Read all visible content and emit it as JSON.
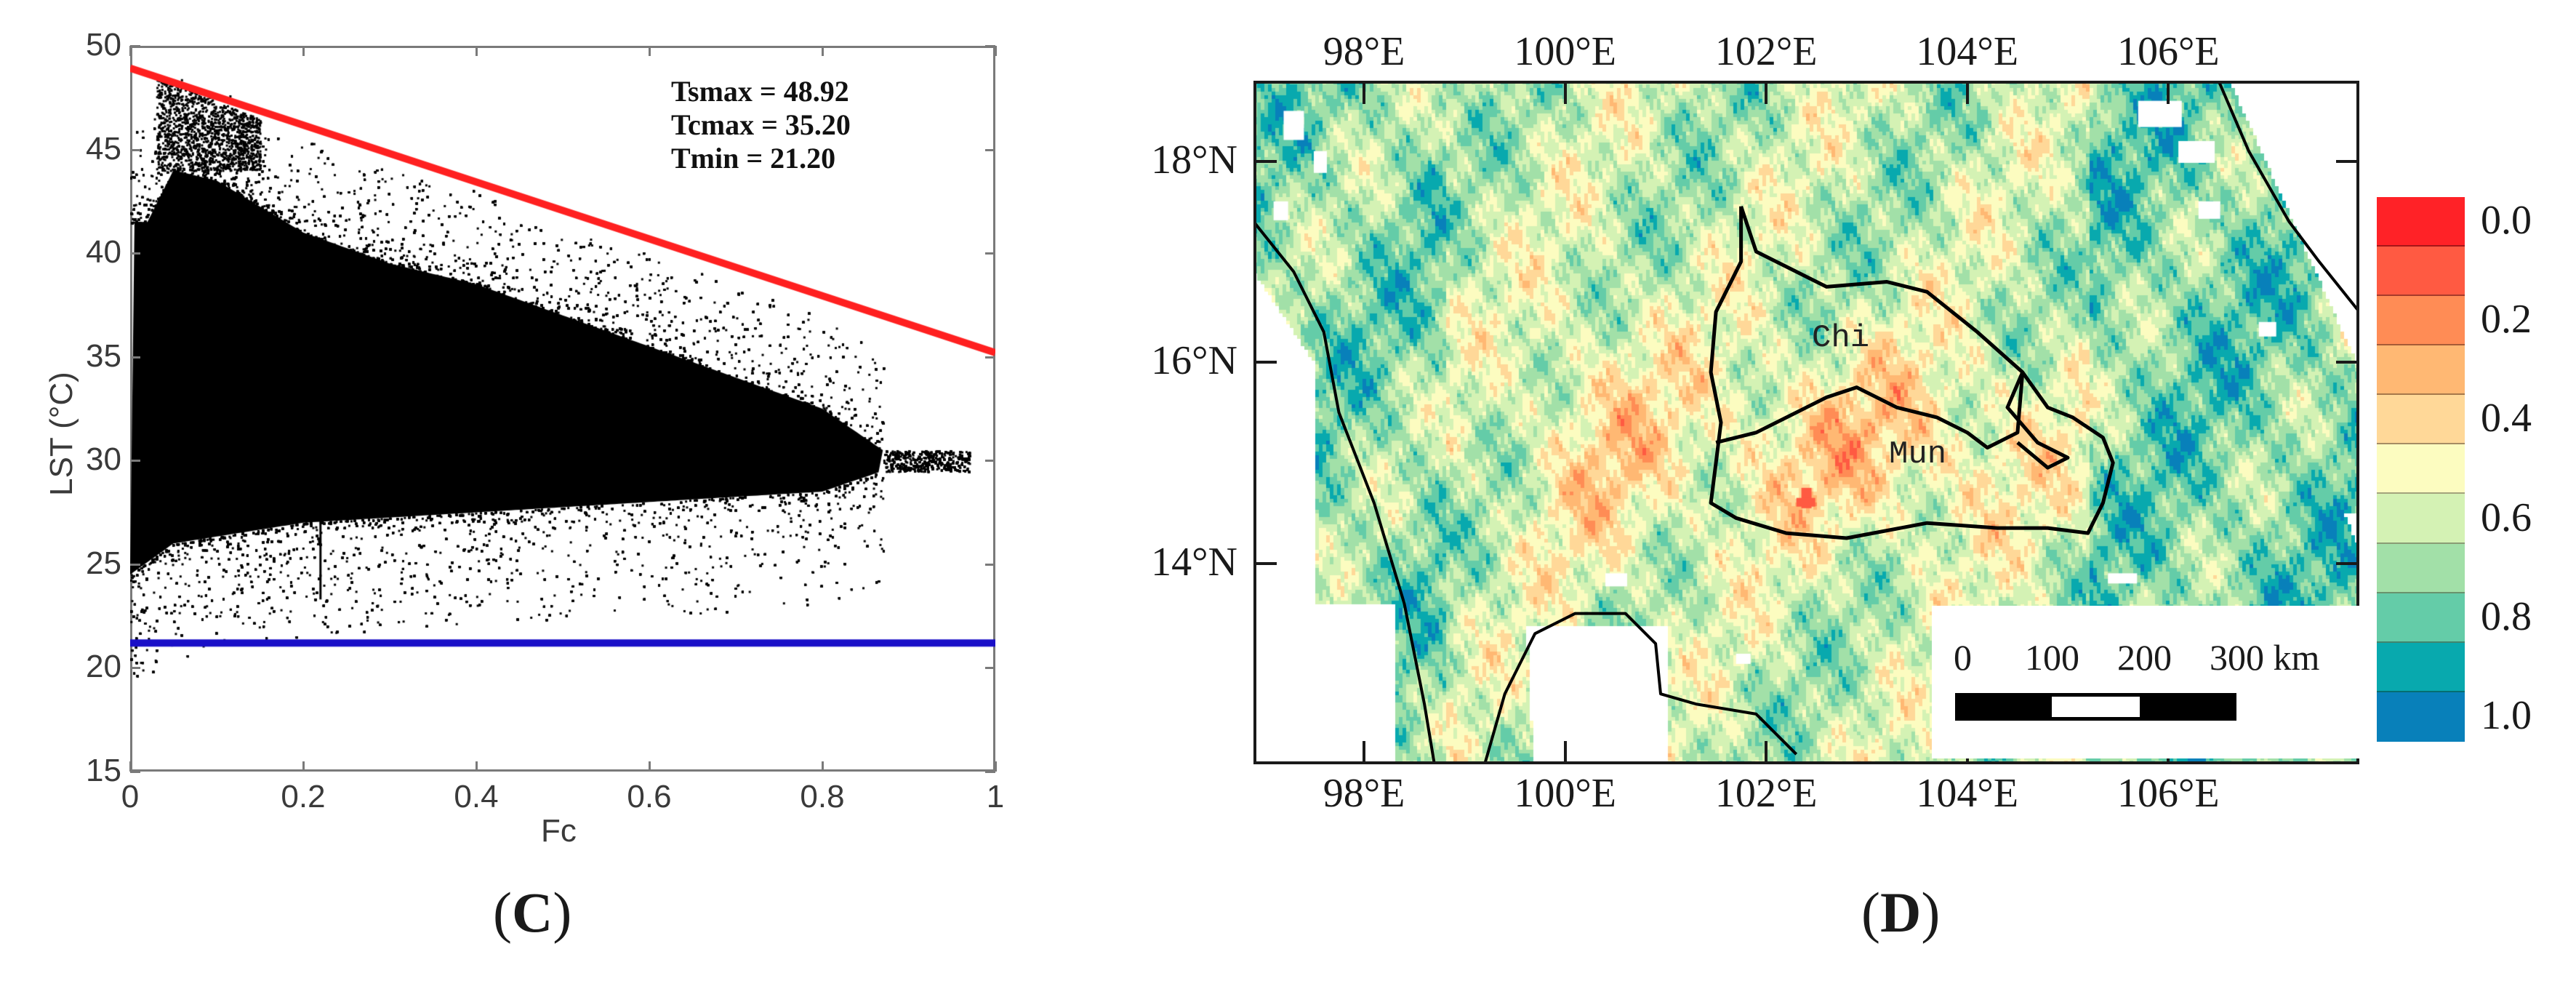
{
  "panels": {
    "left": {
      "label_open": "(",
      "label_letter": "C",
      "label_close": ")"
    },
    "right": {
      "label_open": "(",
      "label_letter": "D",
      "label_close": ")"
    }
  },
  "chart_data": [
    {
      "type": "scatter",
      "title": "",
      "xlabel": "Fc",
      "ylabel": "LST (°C)",
      "xlim": [
        0,
        1
      ],
      "ylim": [
        15,
        50
      ],
      "xticks": [
        "0",
        "0.2",
        "0.4",
        "0.6",
        "0.8",
        "1"
      ],
      "xtick_values": [
        0,
        0.2,
        0.4,
        0.6,
        0.8,
        1
      ],
      "yticks": [
        "15",
        "20",
        "25",
        "30",
        "35",
        "40",
        "45",
        "50"
      ],
      "ytick_values": [
        15,
        20,
        25,
        30,
        35,
        40,
        45,
        50
      ],
      "grid": false,
      "annotations": [
        "Tsmax = 48.92",
        "Tcmax = 35.20",
        "Tmin = 21.20"
      ],
      "lines": [
        {
          "name": "dry edge",
          "color": "#ff2020",
          "x": [
            0,
            1
          ],
          "y": [
            48.92,
            35.2
          ]
        },
        {
          "name": "wet edge",
          "color": "#1a0fc8",
          "x": [
            0,
            1
          ],
          "y": [
            21.2,
            21.2
          ]
        }
      ],
      "scatter_cloud": {
        "color": "#000000",
        "description": "dense Fc-LST point cloud, upper envelope falling from ~44°C at Fc≈0.05 to ~31°C at Fc≈0.85; lower envelope ~25-28°C",
        "upper_envelope": [
          [
            0.02,
            41.5
          ],
          [
            0.05,
            44.0
          ],
          [
            0.1,
            43.5
          ],
          [
            0.2,
            41.0
          ],
          [
            0.3,
            39.5
          ],
          [
            0.4,
            38.5
          ],
          [
            0.5,
            37.0
          ],
          [
            0.6,
            35.5
          ],
          [
            0.7,
            34.0
          ],
          [
            0.8,
            32.5
          ],
          [
            0.87,
            30.5
          ]
        ],
        "lower_envelope": [
          [
            0.0,
            24.5
          ],
          [
            0.05,
            26.0
          ],
          [
            0.2,
            27.0
          ],
          [
            0.4,
            27.5
          ],
          [
            0.6,
            28.0
          ],
          [
            0.8,
            28.5
          ],
          [
            0.87,
            29.5
          ]
        ],
        "vertical_streak": {
          "x": 0.22,
          "y_from": 23.3,
          "y_to": 30.5
        }
      }
    },
    {
      "type": "heatmap",
      "title": "",
      "description": "spatial map with basin outlines",
      "lon_ticks": [
        "98°E",
        "100°E",
        "102°E",
        "104°E",
        "106°E"
      ],
      "lon_values": [
        98,
        100,
        102,
        104,
        106
      ],
      "lat_ticks": [
        "18°N",
        "16°N",
        "14°N"
      ],
      "lat_values": [
        18,
        16,
        14
      ],
      "extent": {
        "lon": [
          96.9,
          107.9
        ],
        "lat": [
          12.0,
          18.8
        ]
      },
      "regions": [
        {
          "name": "Chi"
        },
        {
          "name": "Mun"
        }
      ],
      "colorbar": {
        "tick_labels": [
          "0.0",
          "0.2",
          "0.4",
          "0.6",
          "0.8",
          "1.0"
        ],
        "tick_values": [
          0.0,
          0.2,
          0.4,
          0.6,
          0.8,
          1.0
        ],
        "segment_colors": [
          "#ff2227",
          "#ff5a42",
          "#ff8c55",
          "#ffb873",
          "#ffd898",
          "#fcfcc0",
          "#d4f2b4",
          "#a2e0a8",
          "#64cca8",
          "#08a9ae",
          "#0880ba"
        ]
      },
      "scale_bar": {
        "labels": [
          "0",
          "100",
          "200",
          "300 km"
        ]
      }
    }
  ]
}
